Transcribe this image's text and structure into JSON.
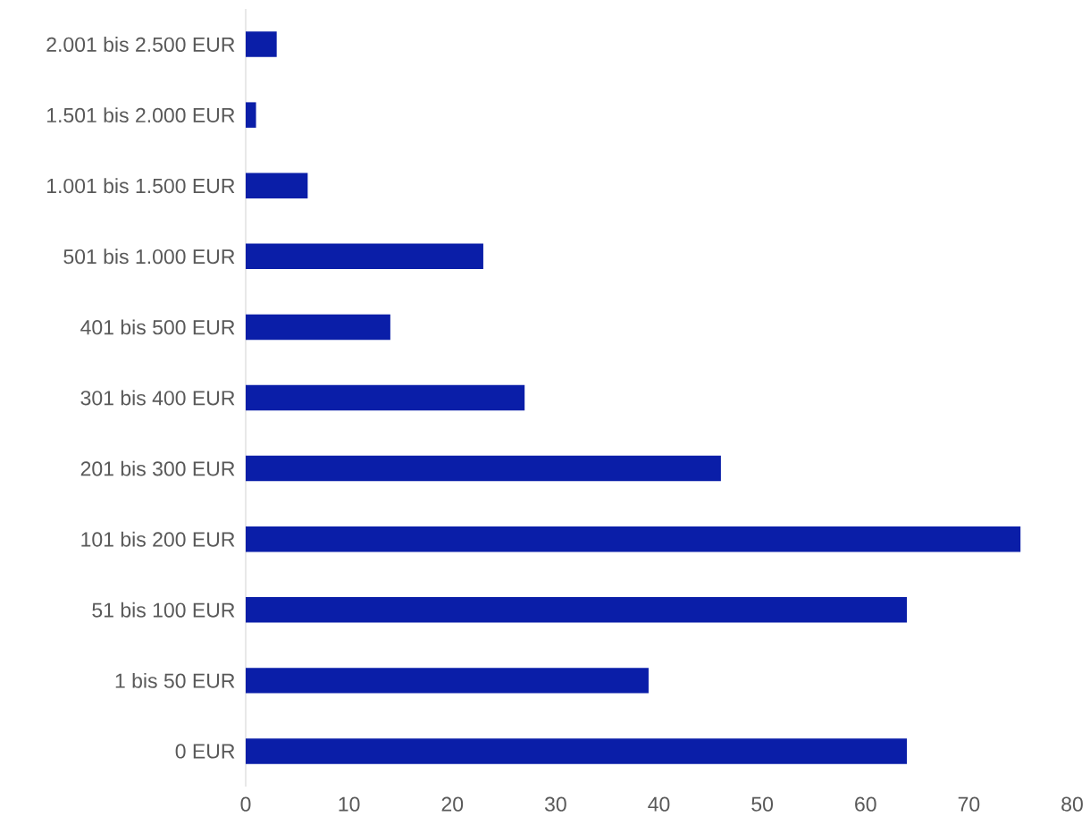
{
  "chart_data": {
    "type": "bar",
    "orientation": "horizontal",
    "categories": [
      "2.001 bis 2.500 EUR",
      "1.501 bis 2.000 EUR",
      "1.001 bis 1.500 EUR",
      "501 bis 1.000 EUR",
      "401 bis 500 EUR",
      "301 bis 400 EUR",
      "201 bis 300 EUR",
      "101 bis 200 EUR",
      "51 bis 100 EUR",
      "1 bis 50 EUR",
      "0 EUR"
    ],
    "values": [
      3,
      1,
      6,
      23,
      14,
      27,
      46,
      75,
      64,
      39,
      64
    ],
    "color": "#0a1ea8",
    "xlim": [
      0,
      80
    ],
    "xticks": [
      0,
      10,
      20,
      30,
      40,
      50,
      60,
      70,
      80
    ],
    "grid": false
  }
}
